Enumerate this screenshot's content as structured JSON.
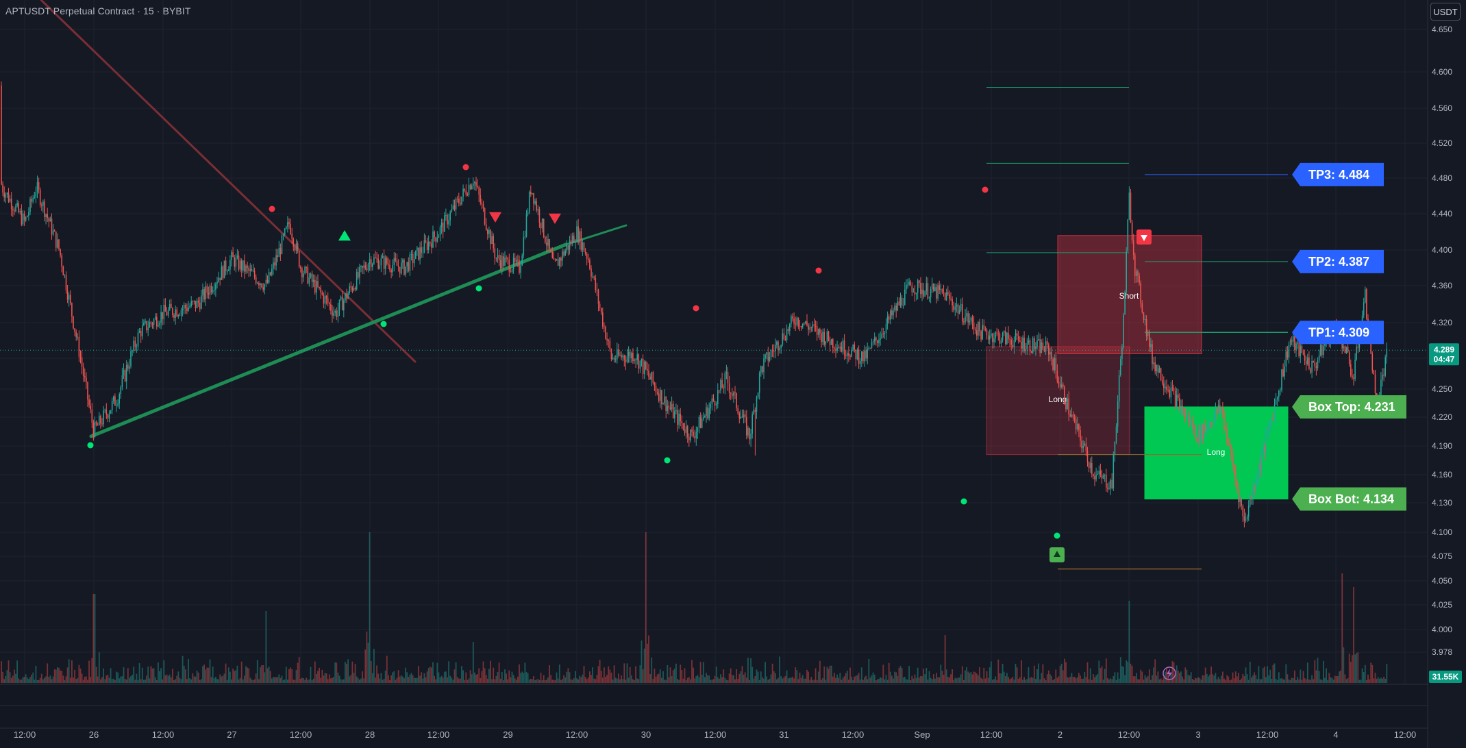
{
  "header": {
    "title": "APTUSDT Perpetual Contract · 15 · BYBIT",
    "unit": "USDT"
  },
  "chart_data": {
    "type": "candlestick",
    "symbol": "APTUSDT",
    "interval": "15",
    "exchange": "BYBIT",
    "ylim": [
      3.94,
      4.67
    ],
    "y_ticks": [
      "4.650",
      "4.600",
      "4.560",
      "4.520",
      "4.480",
      "4.440",
      "4.400",
      "4.360",
      "4.320",
      "4.280",
      "4.250",
      "4.220",
      "4.190",
      "4.160",
      "4.130",
      "4.100",
      "4.075",
      "4.050",
      "4.025",
      "4.000",
      "3.978"
    ],
    "x_ticks": [
      "12:00",
      "26",
      "12:00",
      "27",
      "12:00",
      "28",
      "12:00",
      "29",
      "12:00",
      "30",
      "12:00",
      "31",
      "12:00",
      "Sep",
      "12:00",
      "2",
      "12:00",
      "3",
      "12:00",
      "4",
      "12:00"
    ],
    "price_path": [
      {
        "t": "Aug 25 05:00",
        "price": 4.585
      },
      {
        "t": "Aug 25 08:00",
        "price": 4.47
      },
      {
        "t": "Aug 25 12:00",
        "price": 4.43
      },
      {
        "t": "Aug 25 14:00",
        "price": 4.47
      },
      {
        "t": "Aug 25 18:00",
        "price": 4.4
      },
      {
        "t": "Aug 26 00:00",
        "price": 4.205
      },
      {
        "t": "Aug 26 04:00",
        "price": 4.24
      },
      {
        "t": "Aug 26 08:00",
        "price": 4.31
      },
      {
        "t": "Aug 26 12:00",
        "price": 4.33
      },
      {
        "t": "Aug 26 18:00",
        "price": 4.34
      },
      {
        "t": "Aug 27 00:00",
        "price": 4.39
      },
      {
        "t": "Aug 27 06:00",
        "price": 4.36
      },
      {
        "t": "Aug 27 10:00",
        "price": 4.43
      },
      {
        "t": "Aug 27 12:00",
        "price": 4.38
      },
      {
        "t": "Aug 27 18:00",
        "price": 4.33
      },
      {
        "t": "Aug 28 00:00",
        "price": 4.39
      },
      {
        "t": "Aug 28 06:00",
        "price": 4.38
      },
      {
        "t": "Aug 28 12:00",
        "price": 4.42
      },
      {
        "t": "Aug 28 18:00",
        "price": 4.48
      },
      {
        "t": "Aug 28 22:00",
        "price": 4.39
      },
      {
        "t": "Aug 29 02:00",
        "price": 4.38
      },
      {
        "t": "Aug 29 04:00",
        "price": 4.47
      },
      {
        "t": "Aug 29 08:00",
        "price": 4.38
      },
      {
        "t": "Aug 29 12:00",
        "price": 4.42
      },
      {
        "t": "Aug 29 14:00",
        "price": 4.39
      },
      {
        "t": "Aug 29 18:00",
        "price": 4.28
      },
      {
        "t": "Aug 29 22:00",
        "price": 4.285
      },
      {
        "t": "Aug 30 04:00",
        "price": 4.23
      },
      {
        "t": "Aug 30 08:00",
        "price": 4.2
      },
      {
        "t": "Aug 30 14:00",
        "price": 4.26
      },
      {
        "t": "Aug 30 18:00",
        "price": 4.2
      },
      {
        "t": "Aug 30 20:00",
        "price": 4.27
      },
      {
        "t": "Aug 31 02:00",
        "price": 4.325
      },
      {
        "t": "Aug 31 08:00",
        "price": 4.3
      },
      {
        "t": "Aug 31 14:00",
        "price": 4.28
      },
      {
        "t": "Aug 31 22:00",
        "price": 4.36
      },
      {
        "t": "Sep 1 04:00",
        "price": 4.35
      },
      {
        "t": "Sep 1 10:00",
        "price": 4.31
      },
      {
        "t": "Sep 1 16:00",
        "price": 4.3
      },
      {
        "t": "Sep 1 22:00",
        "price": 4.29
      },
      {
        "t": "Sep 2 02:00",
        "price": 4.22
      },
      {
        "t": "Sep 2 06:00",
        "price": 4.16
      },
      {
        "t": "Sep 2 09:00",
        "price": 4.15
      },
      {
        "t": "Sep 2 11:00",
        "price": 4.32
      },
      {
        "t": "Sep 2 12:00",
        "price": 4.46
      },
      {
        "t": "Sep 2 13:00",
        "price": 4.38
      },
      {
        "t": "Sep 2 16:00",
        "price": 4.28
      },
      {
        "t": "Sep 2 20:00",
        "price": 4.24
      },
      {
        "t": "Sep 3 00:00",
        "price": 4.2
      },
      {
        "t": "Sep 3 04:00",
        "price": 4.23
      },
      {
        "t": "Sep 3 08:00",
        "price": 4.11
      },
      {
        "t": "Sep 3 12:00",
        "price": 4.2
      },
      {
        "t": "Sep 3 16:00",
        "price": 4.3
      },
      {
        "t": "Sep 3 20:00",
        "price": 4.27
      },
      {
        "t": "Sep 4 00:00",
        "price": 4.32
      },
      {
        "t": "Sep 4 03:00",
        "price": 4.26
      },
      {
        "t": "Sep 4 05:00",
        "price": 4.35
      },
      {
        "t": "Sep 4 07:00",
        "price": 4.23
      },
      {
        "t": "Sep 4 09:00",
        "price": 4.289
      }
    ],
    "last_price": "4.289",
    "countdown": "04:47",
    "volume_last": "31.55K",
    "targets": [
      {
        "label": "TP3: 4.484",
        "value": 4.484,
        "color": "#2962ff"
      },
      {
        "label": "TP2: 4.387",
        "value": 4.387,
        "color": "#2962ff"
      },
      {
        "label": "TP1: 4.309",
        "value": 4.309,
        "color": "#2962ff"
      },
      {
        "label": "Box Top: 4.231",
        "value": 4.231,
        "color": "#4caf50"
      },
      {
        "label": "Box Bot: 4.134",
        "value": 4.134,
        "color": "#4caf50"
      }
    ],
    "zones": [
      {
        "label": "Short",
        "color": "#f23645"
      },
      {
        "label": "Long",
        "color": "#f23645"
      },
      {
        "label": "Long",
        "color": "#00c853"
      }
    ],
    "colors": {
      "up": "#26a69a",
      "down": "#ef5350",
      "trendline_up": "#1e8c55",
      "trendline_down": "#7a2e35",
      "target_button": "#2962ff",
      "box_button": "#4caf50"
    }
  }
}
